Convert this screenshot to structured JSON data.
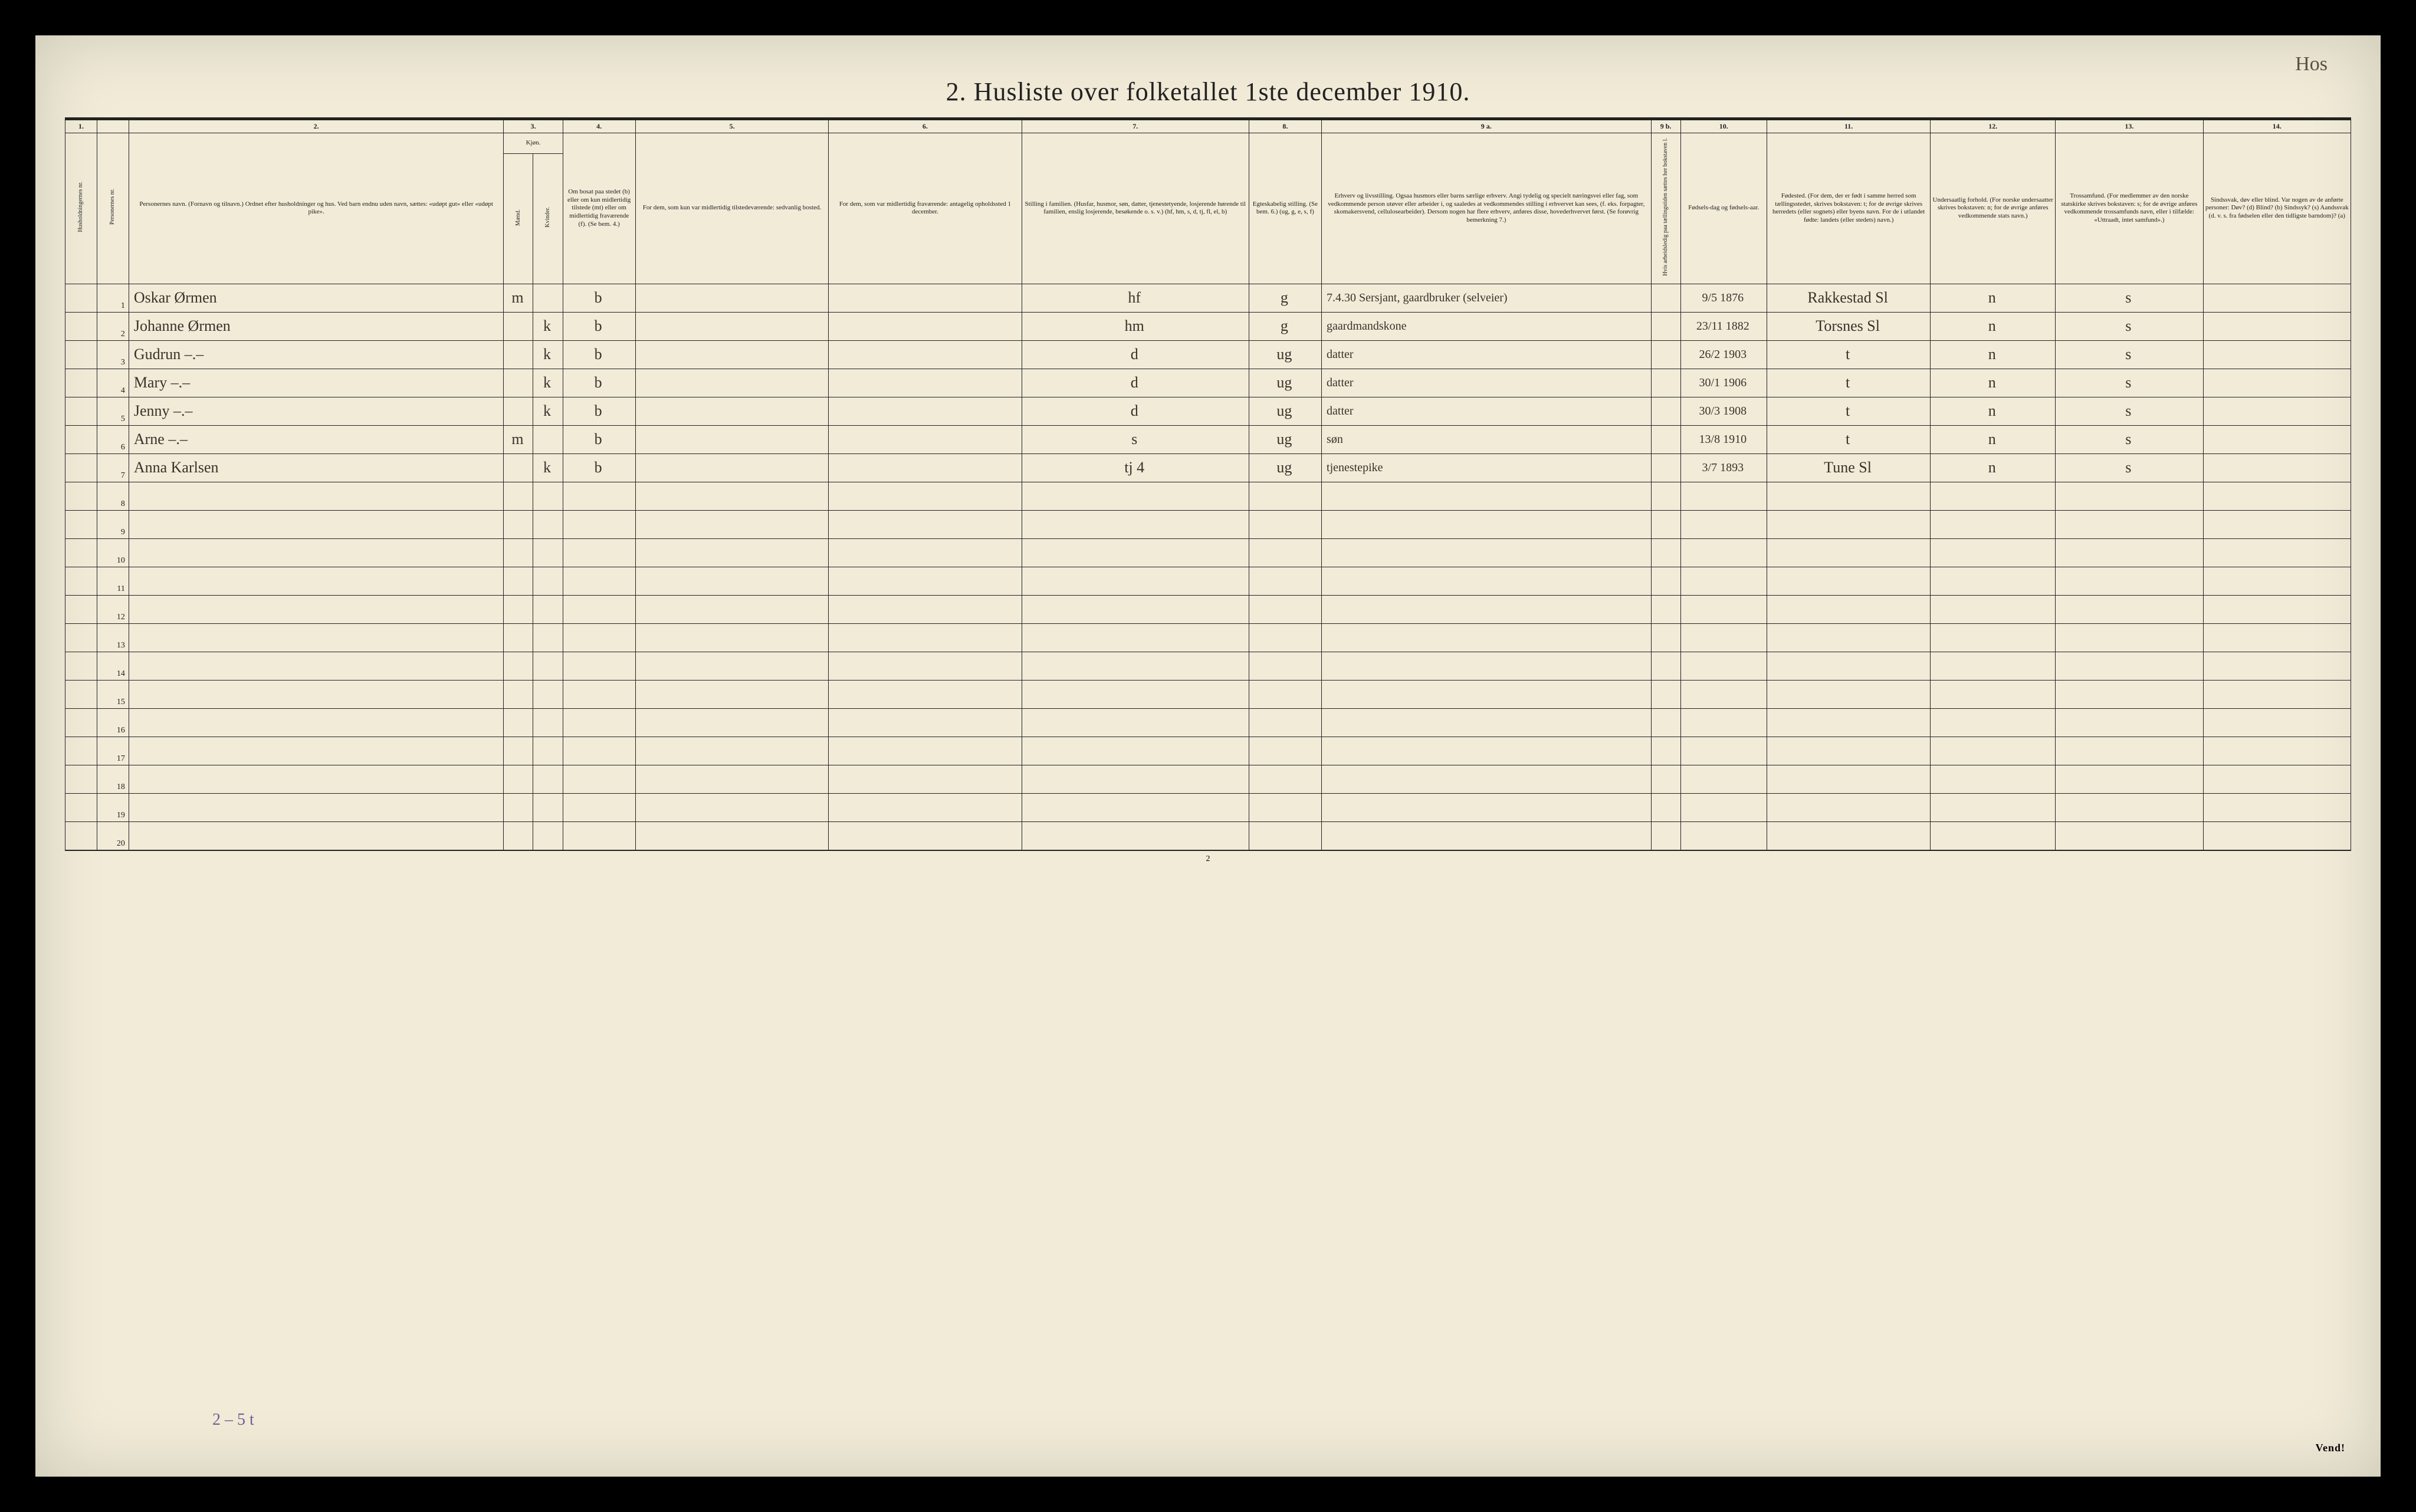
{
  "annotation_topright": "Hos",
  "title": "2.  Husliste over folketallet 1ste december 1910.",
  "col_numbers": [
    "1.",
    "",
    "2.",
    "3.",
    "",
    "4.",
    "5.",
    "6.",
    "7.",
    "8.",
    "9 a.",
    "9 b.",
    "10.",
    "11.",
    "12.",
    "13.",
    "14."
  ],
  "col3_label": "Kjøn.",
  "col3_sub_m": "Mænd.",
  "col3_sub_k": "Kvinder.",
  "headers": {
    "c1": "Husholdningernes nr.",
    "c1b": "Personernes nr.",
    "c2": "Personernes navn.\n(Fornavn og tilnavn.)\nOrdnet efter husholdninger og hus.\nVed barn endnu uden navn, sættes: «udøpt gut» eller «udøpt pike».",
    "c3": "Kjøn.",
    "c4": "Om bosat paa stedet (b) eller om kun midlertidig tilstede (mt) eller om midlertidig fraværende (f).\n(Se bem. 4.)",
    "c5": "For dem, som kun var midlertidig tilstedeværende:\nsedvanlig bosted.",
    "c6": "For dem, som var midlertidig fraværende:\nantagelig opholdssted 1 december.",
    "c7": "Stilling i familien.\n(Husfar, husmor, søn, datter, tjenestetyende, losjerende hørende til familien, enslig losjerende, besøkende o. s. v.)\n(hf, hm, s, d, tj, fl, el, b)",
    "c8": "Egteskabelig stilling.\n(Se bem. 6.)\n(ug, g, e, s, f)",
    "c9a": "Erhverv og livsstilling.\nOgsaa husmors eller barns særlige erhverv.\nAngi tydelig og specielt næringsvei eller fag, som vedkommende person utøver eller arbeider i, og saaledes at vedkommendes stilling i erhvervet kan sees, (f. eks. forpagter, skomakersvend, cellulosearbeider). Dersom nogen har flere erhverv, anføres disse, hovederhvervet først.\n(Se forøvrig bemerkning 7.)",
    "c9b": "Hvis arbeidsledig paa tællingstiden sættes her bokstaven l.",
    "c10": "Fødsels-dag og fødsels-aar.",
    "c11": "Fødested.\n(For dem, der er født i samme herred som tællingsstedet, skrives bokstaven: t; for de øvrige skrives herredets (eller sognets) eller byens navn. For de i utlandet fødte: landets (eller stedets) navn.)",
    "c12": "Undersaatlig forhold.\n(For norske undersaatter skrives bokstaven: n; for de øvrige anføres vedkommende stats navn.)",
    "c13": "Trossamfund.\n(For medlemmer av den norske statskirke skrives bokstaven: s; for de øvrige anføres vedkommende trossamfunds navn, eller i tilfælde: «Uttraadt, intet samfund».)",
    "c14": "Sindssvak, døv eller blind.\nVar nogen av de anførte personer:\nDøv? (d)\nBlind? (b)\nSindssyk? (s)\nAandssvak (d. v. s. fra fødselen eller den tidligste barndom)? (a)"
  },
  "rows": [
    {
      "n": "1",
      "name": "Oskar Ørmen",
      "m": "m",
      "k": "",
      "b": "b",
      "c5": "",
      "c6": "",
      "c7": "hf",
      "c8": "g",
      "c9a": "7.4.30\nSersjant, gaardbruker (selveier)",
      "c10": "9/5 1876",
      "c11": "Rakkestad Sl",
      "c12": "n",
      "c13": "s",
      "c14": ""
    },
    {
      "n": "2",
      "name": "Johanne Ørmen",
      "m": "",
      "k": "k",
      "b": "b",
      "c5": "",
      "c6": "",
      "c7": "hm",
      "c8": "g",
      "c9a": "gaardmandskone",
      "c10": "23/11 1882",
      "c11": "Torsnes Sl",
      "c12": "n",
      "c13": "s",
      "c14": ""
    },
    {
      "n": "3",
      "name": "Gudrun       –.–",
      "m": "",
      "k": "k",
      "b": "b",
      "c5": "",
      "c6": "",
      "c7": "d",
      "c8": "ug",
      "c9a": "datter",
      "c10": "26/2 1903",
      "c11": "t",
      "c12": "n",
      "c13": "s",
      "c14": ""
    },
    {
      "n": "4",
      "name": "Mary         –.–",
      "m": "",
      "k": "k",
      "b": "b",
      "c5": "",
      "c6": "",
      "c7": "d",
      "c8": "ug",
      "c9a": "datter",
      "c10": "30/1 1906",
      "c11": "t",
      "c12": "n",
      "c13": "s",
      "c14": ""
    },
    {
      "n": "5",
      "name": "Jenny        –.–",
      "m": "",
      "k": "k",
      "b": "b",
      "c5": "",
      "c6": "",
      "c7": "d",
      "c8": "ug",
      "c9a": "datter",
      "c10": "30/3 1908",
      "c11": "t",
      "c12": "n",
      "c13": "s",
      "c14": ""
    },
    {
      "n": "6",
      "name": "Arne         –.–",
      "m": "m",
      "k": "",
      "b": "b",
      "c5": "",
      "c6": "",
      "c7": "s",
      "c8": "ug",
      "c9a": "søn",
      "c10": "13/8 1910",
      "c11": "t",
      "c12": "n",
      "c13": "s",
      "c14": ""
    },
    {
      "n": "7",
      "name": "Anna Karlsen",
      "m": "",
      "k": "k",
      "b": "b",
      "c5": "",
      "c6": "",
      "c7": "tj   4",
      "c8": "ug",
      "c9a": "tjenestepike",
      "c10": "3/7 1893",
      "c11": "Tune Sl",
      "c12": "n",
      "c13": "s",
      "c14": ""
    },
    {
      "n": "8"
    },
    {
      "n": "9"
    },
    {
      "n": "10"
    },
    {
      "n": "11"
    },
    {
      "n": "12"
    },
    {
      "n": "13"
    },
    {
      "n": "14"
    },
    {
      "n": "15"
    },
    {
      "n": "16"
    },
    {
      "n": "17"
    },
    {
      "n": "18"
    },
    {
      "n": "19"
    },
    {
      "n": "20"
    }
  ],
  "footer_page": "2",
  "footer_note": "2 – 5 t",
  "vend": "Vend!"
}
